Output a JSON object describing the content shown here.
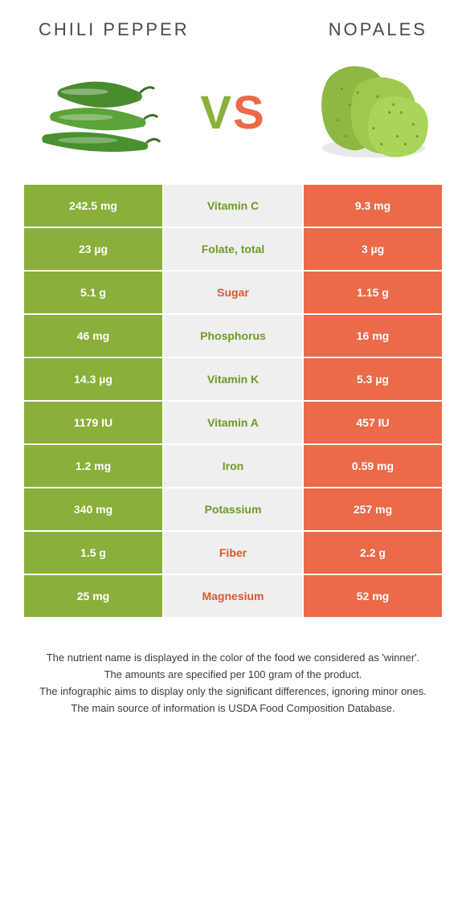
{
  "left_name": "Chili pepper",
  "right_name": "Nopales",
  "vs_v": "V",
  "vs_s": "S",
  "colors": {
    "left": "#8aaf3a",
    "right": "#ea6a49",
    "mid_bg": "#efefef",
    "green_text": "#6e9a23",
    "orange_text": "#d8572e"
  },
  "rows": [
    {
      "left": "242.5 mg",
      "label": "Vitamin C",
      "right": "9.3 mg",
      "winner": "green"
    },
    {
      "left": "23 µg",
      "label": "Folate, total",
      "right": "3 µg",
      "winner": "green"
    },
    {
      "left": "5.1 g",
      "label": "Sugar",
      "right": "1.15 g",
      "winner": "orange"
    },
    {
      "left": "46 mg",
      "label": "Phosphorus",
      "right": "16 mg",
      "winner": "green"
    },
    {
      "left": "14.3 µg",
      "label": "Vitamin K",
      "right": "5.3 µg",
      "winner": "green"
    },
    {
      "left": "1179 IU",
      "label": "Vitamin A",
      "right": "457 IU",
      "winner": "green"
    },
    {
      "left": "1.2 mg",
      "label": "Iron",
      "right": "0.59 mg",
      "winner": "green"
    },
    {
      "left": "340 mg",
      "label": "Potassium",
      "right": "257 mg",
      "winner": "green"
    },
    {
      "left": "1.5 g",
      "label": "Fiber",
      "right": "2.2 g",
      "winner": "orange"
    },
    {
      "left": "25 mg",
      "label": "Magnesium",
      "right": "52 mg",
      "winner": "orange"
    }
  ],
  "footer": [
    "The nutrient name is displayed in the color of the food we considered as 'winner'.",
    "The amounts are specified per 100 gram of the product.",
    "The infographic aims to display only the significant differences, ignoring minor ones.",
    "The main source of information is USDA Food Composition Database."
  ]
}
